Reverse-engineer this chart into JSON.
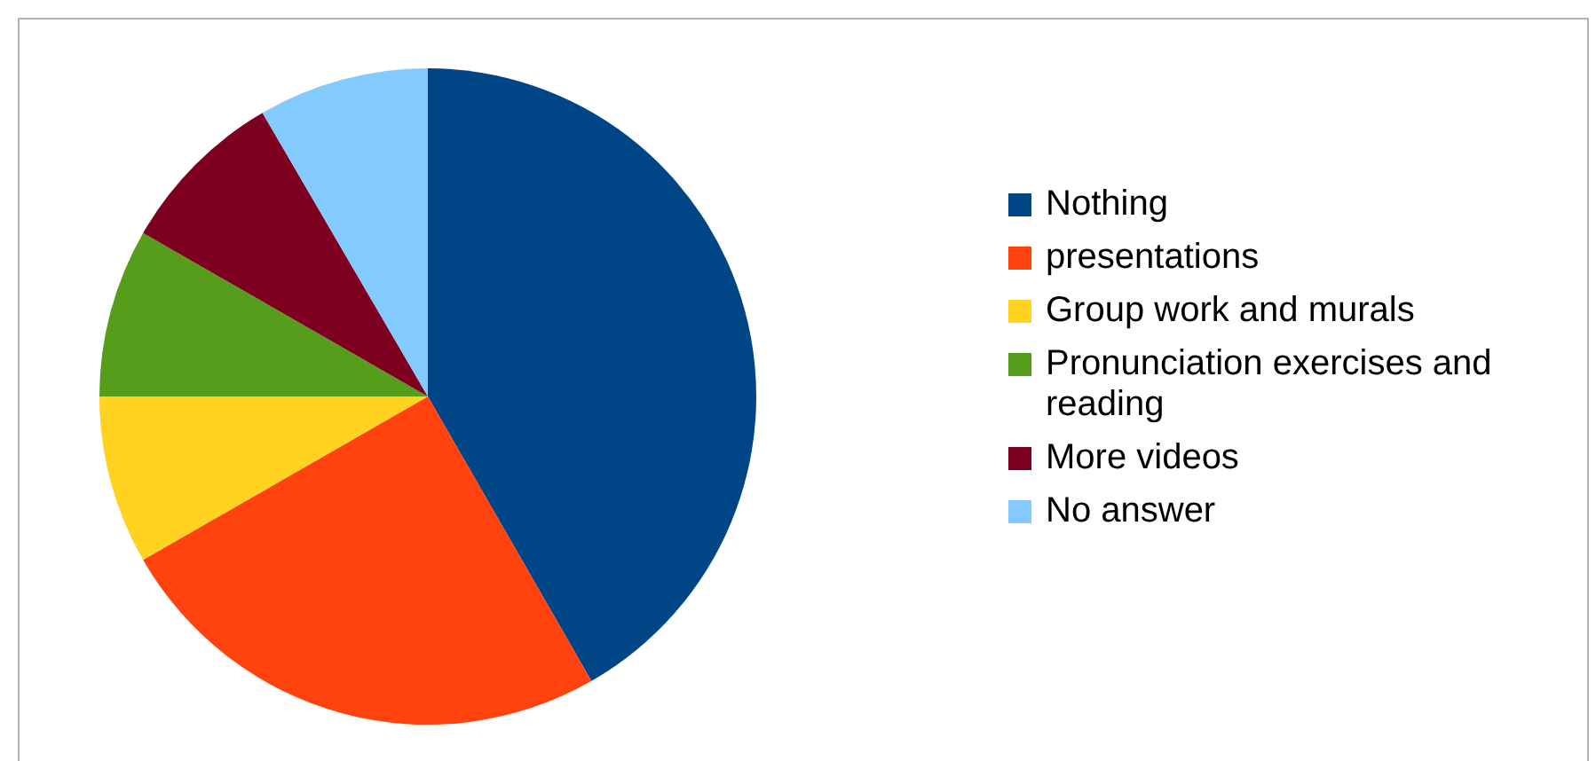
{
  "chart_data": {
    "type": "pie",
    "categories": [
      "Nothing",
      "presentations",
      "Group work and murals",
      "Pronunciation exercises and reading",
      "More videos",
      "No answer"
    ],
    "values": [
      41.7,
      25,
      8.3,
      8.3,
      8.3,
      8.4
    ],
    "colors": [
      "#004586",
      "#ff420e",
      "#ffd320",
      "#579d1c",
      "#7e0021",
      "#83caff"
    ],
    "legend": "right"
  }
}
